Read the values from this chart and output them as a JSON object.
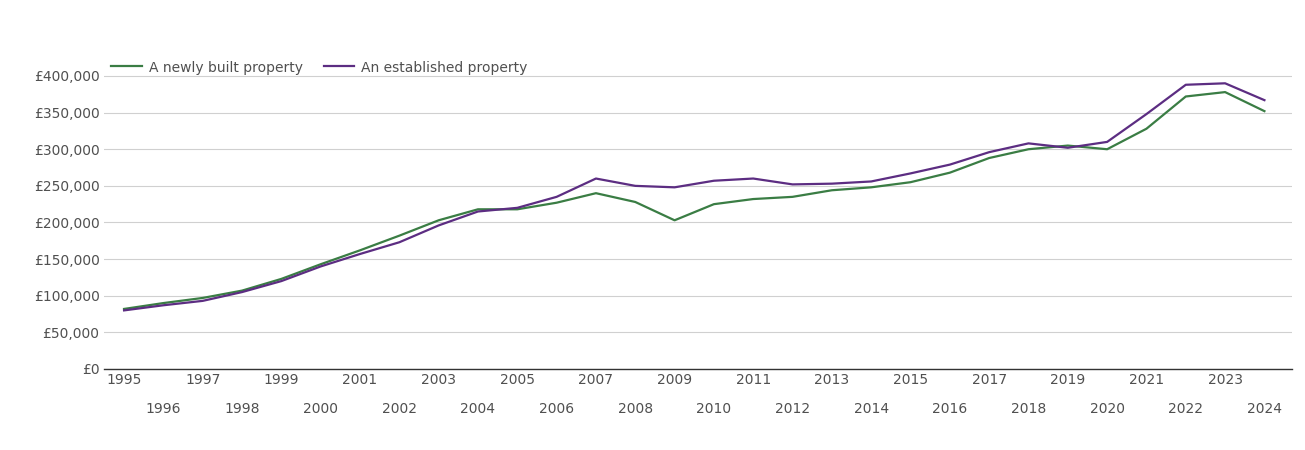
{
  "newly_built_years": [
    1995,
    1996,
    1997,
    1998,
    1999,
    2000,
    2001,
    2002,
    2003,
    2004,
    2005,
    2006,
    2007,
    2008,
    2009,
    2010,
    2011,
    2012,
    2013,
    2014,
    2015,
    2016,
    2017,
    2018,
    2019,
    2020,
    2021,
    2022,
    2023,
    2024
  ],
  "newly_built_values": [
    82000,
    90000,
    97000,
    107000,
    123000,
    143000,
    162000,
    182000,
    203000,
    218000,
    218000,
    227000,
    240000,
    228000,
    203000,
    225000,
    232000,
    235000,
    244000,
    248000,
    255000,
    268000,
    288000,
    300000,
    305000,
    300000,
    328000,
    372000,
    378000,
    352000
  ],
  "established_years": [
    1995,
    1996,
    1997,
    1998,
    1999,
    2000,
    2001,
    2002,
    2003,
    2004,
    2005,
    2006,
    2007,
    2008,
    2009,
    2010,
    2011,
    2012,
    2013,
    2014,
    2015,
    2016,
    2017,
    2018,
    2019,
    2020,
    2021,
    2022,
    2023,
    2024
  ],
  "established_values": [
    80000,
    87000,
    93000,
    105000,
    120000,
    140000,
    157000,
    173000,
    196000,
    215000,
    220000,
    235000,
    260000,
    250000,
    248000,
    257000,
    260000,
    252000,
    253000,
    256000,
    267000,
    279000,
    296000,
    308000,
    302000,
    310000,
    348000,
    388000,
    390000,
    367000
  ],
  "newly_color": "#3a7d44",
  "established_color": "#5c2d82",
  "newly_label": "A newly built property",
  "established_label": "An established property",
  "yticks": [
    0,
    50000,
    100000,
    150000,
    200000,
    250000,
    300000,
    350000,
    400000
  ],
  "ylim_min": 0,
  "ylim_max": 430000,
  "xlim_min": 1994.5,
  "xlim_max": 2024.7,
  "odd_years": [
    1995,
    1997,
    1999,
    2001,
    2003,
    2005,
    2007,
    2009,
    2011,
    2013,
    2015,
    2017,
    2019,
    2021,
    2023
  ],
  "even_years": [
    1996,
    1998,
    2000,
    2002,
    2004,
    2006,
    2008,
    2010,
    2012,
    2014,
    2016,
    2018,
    2020,
    2022,
    2024
  ],
  "bg_color": "#ffffff",
  "grid_color": "#d0d0d0",
  "text_color": "#505050",
  "axis_color": "#333333",
  "fontsize": 11,
  "tick_fontsize": 10,
  "line_width": 1.6
}
